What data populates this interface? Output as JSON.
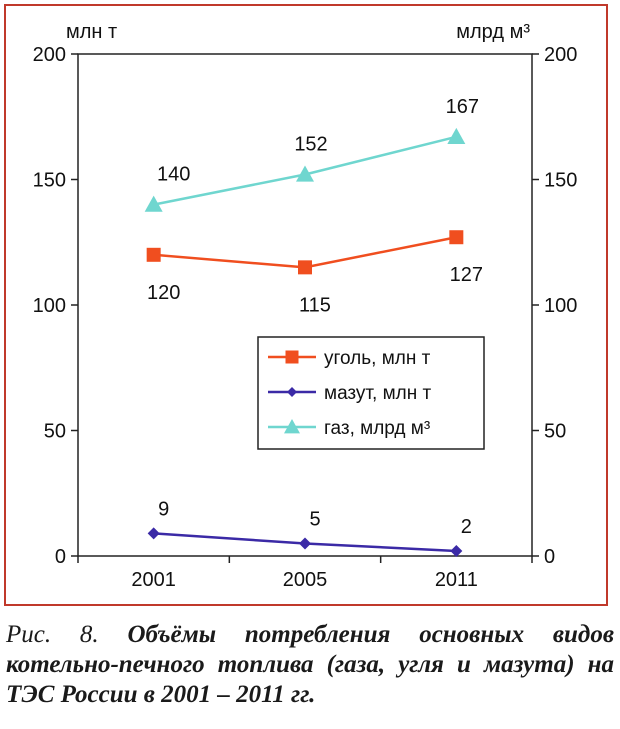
{
  "chart_data": {
    "type": "line",
    "categories": [
      "2001",
      "2005",
      "2011"
    ],
    "y_left_label": "млн т",
    "y_right_label": "млрд м³",
    "ylim": [
      0,
      200
    ],
    "yticks": [
      0,
      50,
      100,
      150,
      200
    ],
    "y_right_ticks": [
      0,
      50,
      100,
      150,
      200
    ],
    "grid": false,
    "legend_position": "right-middle",
    "series": [
      {
        "name": "уголь, млн т",
        "values": [
          120,
          115,
          127
        ],
        "color": "#f04e1f",
        "marker": "square"
      },
      {
        "name": "мазут, млн т",
        "values": [
          9,
          5,
          2
        ],
        "color": "#3b2aa6",
        "marker": "diamond"
      },
      {
        "name": "газ, млрд м³",
        "values": [
          140,
          152,
          167
        ],
        "color": "#6fd6cf",
        "marker": "triangle"
      }
    ],
    "data_labels": {
      "уголь, млн т": [
        "120",
        "115",
        "127"
      ],
      "мазут, млн т": [
        "9",
        "5",
        "2"
      ],
      "газ, млрд м³": [
        "140",
        "152",
        "167"
      ]
    }
  },
  "caption": {
    "lead": "Рис. 8.",
    "text": "Объёмы потребления основных видов котельно-печного топлива (газа, угля и мазута) на ТЭС России в 2001 – 2011 гг."
  }
}
